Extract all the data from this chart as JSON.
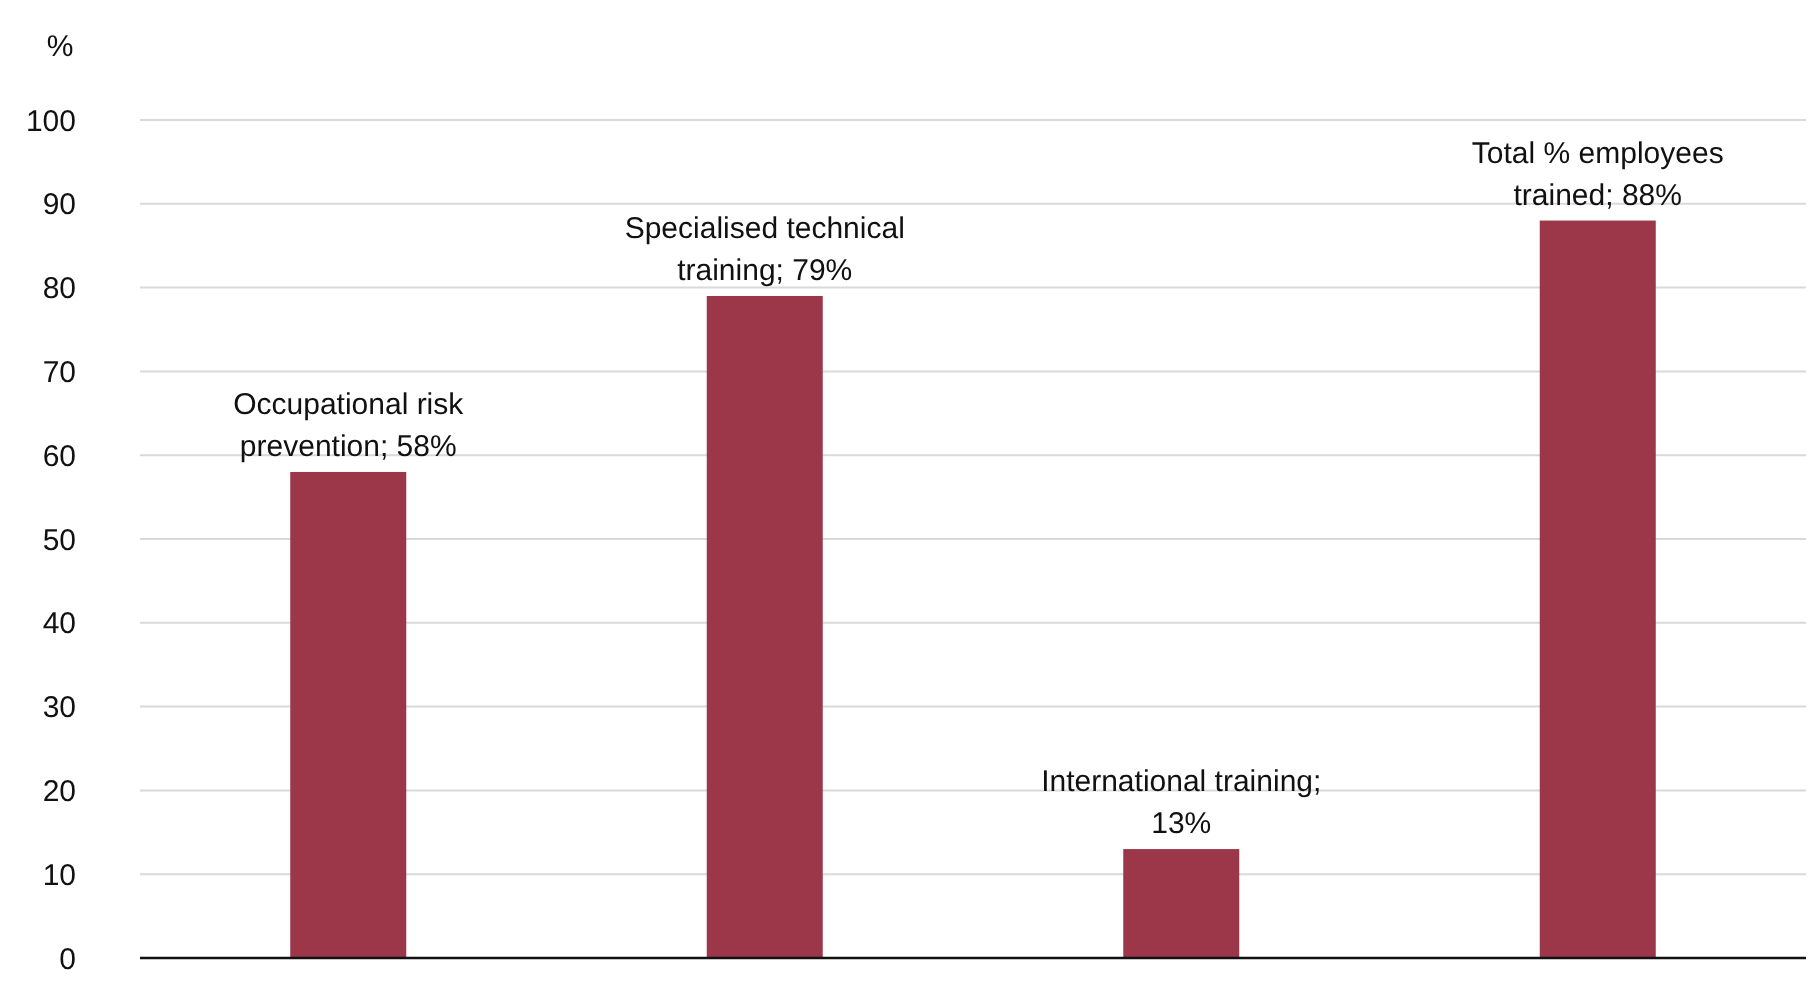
{
  "chart_data": {
    "type": "bar",
    "ylabel": "%",
    "categories": [
      null,
      null,
      null,
      null
    ],
    "values": [
      58,
      79,
      13,
      88
    ],
    "color": "#9c3649",
    "value_labels": [
      "Occupational risk prevention; 58%",
      "Specialised technical training; 79%",
      "International training; 13%",
      "Total % employees trained; 88%"
    ],
    "ylim": [
      0,
      100
    ],
    "yticks": [
      0,
      10,
      20,
      30,
      40,
      50,
      60,
      70,
      80,
      90,
      100
    ],
    "grid": "y"
  }
}
